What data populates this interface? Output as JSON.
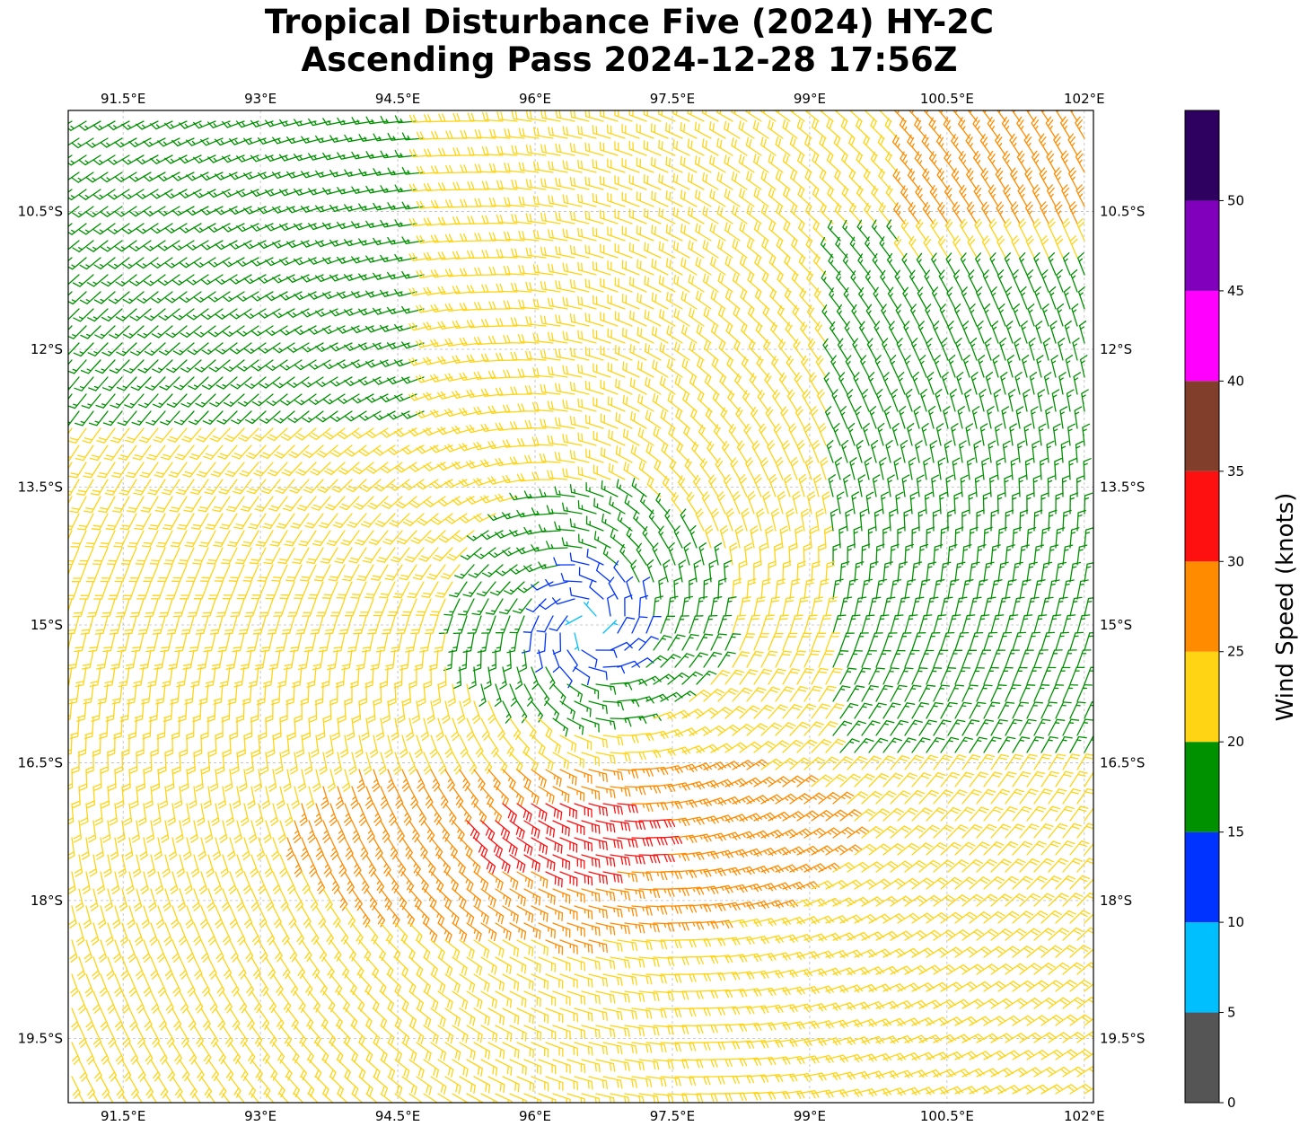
{
  "title": {
    "line1": "Tropical Disturbance Five (2024) HY-2C",
    "line2": "Ascending Pass 2024-12-28 17:56Z"
  },
  "map": {
    "lon_range": [
      90.9,
      102.1
    ],
    "lat_range": [
      -20.2,
      -9.4
    ],
    "lon_ticks": [
      {
        "value": 91.5,
        "label": "91.5°E"
      },
      {
        "value": 93.0,
        "label": "93°E"
      },
      {
        "value": 94.5,
        "label": "94.5°E"
      },
      {
        "value": 96.0,
        "label": "96°E"
      },
      {
        "value": 97.5,
        "label": "97.5°E"
      },
      {
        "value": 99.0,
        "label": "99°E"
      },
      {
        "value": 100.5,
        "label": "100.5°E"
      },
      {
        "value": 102.0,
        "label": "102°E"
      }
    ],
    "lat_ticks": [
      {
        "value": -10.5,
        "label": "10.5°S"
      },
      {
        "value": -12.0,
        "label": "12°S"
      },
      {
        "value": -13.5,
        "label": "13.5°S"
      },
      {
        "value": -15.0,
        "label": "15°S"
      },
      {
        "value": -16.5,
        "label": "16.5°S"
      },
      {
        "value": -18.0,
        "label": "18°S"
      },
      {
        "value": -19.5,
        "label": "19.5°S"
      }
    ],
    "grid": true,
    "gridline_style": "dashed",
    "wind_field": {
      "type": "wind barbs",
      "circulation_center": {
        "lon": 96.6,
        "lat": -15.0
      },
      "rotation": "clockwise",
      "max_wind_region": {
        "lon": 96.4,
        "lat": -17.2
      },
      "max_speed_kt": 33
    }
  },
  "colorbar": {
    "label": "Wind Speed (knots)",
    "bins": [
      {
        "min": 0,
        "max": 5,
        "color": "#555555"
      },
      {
        "min": 5,
        "max": 10,
        "color": "#00bfff"
      },
      {
        "min": 10,
        "max": 15,
        "color": "#0033ff"
      },
      {
        "min": 15,
        "max": 20,
        "color": "#009100"
      },
      {
        "min": 20,
        "max": 25,
        "color": "#ffd414"
      },
      {
        "min": 25,
        "max": 30,
        "color": "#ff8c00"
      },
      {
        "min": 30,
        "max": 35,
        "color": "#ff1010"
      },
      {
        "min": 35,
        "max": 40,
        "color": "#813e2b"
      },
      {
        "min": 40,
        "max": 45,
        "color": "#ff00ff"
      },
      {
        "min": 45,
        "max": 50,
        "color": "#8000bb"
      },
      {
        "min": 50,
        "max": 55,
        "color": "#2e0060"
      }
    ],
    "tick_labels": [
      "0",
      "5",
      "10",
      "15",
      "20",
      "25",
      "30",
      "35",
      "40",
      "45",
      "50"
    ]
  }
}
